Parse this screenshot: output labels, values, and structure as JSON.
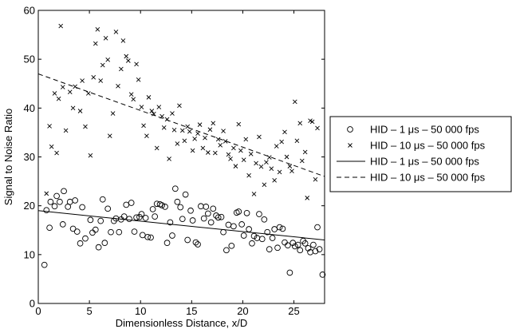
{
  "chart_data": {
    "type": "scatter",
    "xlabel": "Dimensionless Distance, x/D",
    "ylabel": "Signal to Noise Ratio",
    "xlim": [
      0,
      28
    ],
    "ylim": [
      0,
      60
    ],
    "xticks": [
      0,
      5,
      10,
      15,
      20,
      25
    ],
    "yticks": [
      0,
      10,
      20,
      30,
      40,
      50,
      60
    ],
    "grid": false,
    "legend_position": "right",
    "series": [
      {
        "name": "HID – 1 μs – 50 000 fps",
        "kind": "scatter",
        "marker": "circle",
        "points": [
          [
            0.6,
            7.9
          ],
          [
            0.8,
            19.1
          ],
          [
            1.1,
            15.5
          ],
          [
            1.2,
            20.8
          ],
          [
            1.6,
            19.9
          ],
          [
            1.8,
            22.0
          ],
          [
            2.1,
            20.8
          ],
          [
            2.4,
            16.2
          ],
          [
            2.5,
            23.0
          ],
          [
            2.9,
            19.8
          ],
          [
            3.1,
            20.8
          ],
          [
            3.4,
            15.3
          ],
          [
            3.6,
            21.1
          ],
          [
            3.8,
            14.7
          ],
          [
            4.1,
            12.3
          ],
          [
            4.3,
            19.7
          ],
          [
            4.6,
            13.3
          ],
          [
            5.1,
            17.1
          ],
          [
            5.3,
            14.5
          ],
          [
            5.6,
            15.1
          ],
          [
            5.9,
            11.5
          ],
          [
            6.1,
            16.9
          ],
          [
            6.3,
            21.3
          ],
          [
            6.5,
            12.4
          ],
          [
            6.8,
            19.4
          ],
          [
            7.1,
            14.6
          ],
          [
            7.4,
            16.9
          ],
          [
            7.6,
            17.4
          ],
          [
            7.9,
            14.6
          ],
          [
            8.1,
            17.2
          ],
          [
            8.4,
            17.8
          ],
          [
            8.6,
            20.2
          ],
          [
            8.9,
            17.3
          ],
          [
            9.1,
            20.6
          ],
          [
            9.4,
            14.7
          ],
          [
            9.6,
            17.6
          ],
          [
            9.9,
            17.7
          ],
          [
            10.1,
            18.3
          ],
          [
            10.2,
            14.0
          ],
          [
            10.5,
            17.5
          ],
          [
            10.7,
            13.6
          ],
          [
            11.0,
            13.5
          ],
          [
            11.2,
            19.3
          ],
          [
            11.4,
            17.8
          ],
          [
            11.6,
            20.4
          ],
          [
            11.9,
            20.3
          ],
          [
            12.1,
            20.1
          ],
          [
            12.4,
            19.8
          ],
          [
            12.6,
            12.4
          ],
          [
            12.9,
            16.6
          ],
          [
            13.1,
            13.9
          ],
          [
            13.4,
            23.5
          ],
          [
            13.6,
            20.8
          ],
          [
            13.9,
            19.7
          ],
          [
            14.1,
            17.3
          ],
          [
            14.4,
            22.3
          ],
          [
            14.6,
            13.0
          ],
          [
            14.9,
            19.0
          ],
          [
            15.1,
            17.0
          ],
          [
            15.4,
            12.5
          ],
          [
            15.6,
            12.1
          ],
          [
            15.9,
            19.9
          ],
          [
            16.2,
            17.4
          ],
          [
            16.4,
            19.8
          ],
          [
            16.6,
            18.4
          ],
          [
            16.9,
            16.6
          ],
          [
            17.1,
            19.4
          ],
          [
            17.4,
            18.0
          ],
          [
            17.6,
            17.6
          ],
          [
            17.9,
            17.7
          ],
          [
            18.1,
            14.6
          ],
          [
            18.4,
            10.9
          ],
          [
            18.6,
            16.1
          ],
          [
            18.9,
            11.8
          ],
          [
            19.1,
            15.8
          ],
          [
            19.4,
            18.6
          ],
          [
            19.6,
            18.8
          ],
          [
            19.9,
            16.2
          ],
          [
            20.1,
            13.9
          ],
          [
            20.4,
            18.5
          ],
          [
            20.6,
            15.2
          ],
          [
            20.9,
            12.3
          ],
          [
            21.1,
            13.8
          ],
          [
            21.4,
            13.4
          ],
          [
            21.6,
            18.3
          ],
          [
            21.9,
            13.2
          ],
          [
            22.1,
            17.2
          ],
          [
            22.4,
            14.6
          ],
          [
            22.6,
            11.1
          ],
          [
            22.9,
            13.4
          ],
          [
            23.1,
            15.2
          ],
          [
            23.4,
            11.4
          ],
          [
            23.6,
            15.6
          ],
          [
            23.9,
            15.3
          ],
          [
            24.1,
            12.5
          ],
          [
            24.4,
            11.9
          ],
          [
            24.6,
            6.3
          ],
          [
            24.9,
            12.4
          ],
          [
            25.1,
            11.7
          ],
          [
            25.4,
            12.0
          ],
          [
            25.6,
            10.9
          ],
          [
            25.9,
            12.8
          ],
          [
            26.1,
            12.3
          ],
          [
            26.4,
            11.3
          ],
          [
            26.6,
            10.5
          ],
          [
            26.9,
            12.0
          ],
          [
            27.1,
            10.7
          ],
          [
            27.3,
            15.6
          ],
          [
            27.5,
            11.1
          ],
          [
            27.8,
            5.9
          ]
        ]
      },
      {
        "name": "HID – 10 μs – 50 000 fps",
        "kind": "scatter",
        "marker": "x",
        "points": [
          [
            0.8,
            22.5
          ],
          [
            1.1,
            36.3
          ],
          [
            1.3,
            32.1
          ],
          [
            1.6,
            43.0
          ],
          [
            1.8,
            30.8
          ],
          [
            2.0,
            41.9
          ],
          [
            2.2,
            56.8
          ],
          [
            2.4,
            44.3
          ],
          [
            2.7,
            35.4
          ],
          [
            3.1,
            43.3
          ],
          [
            3.4,
            40.0
          ],
          [
            3.6,
            44.4
          ],
          [
            4.1,
            39.4
          ],
          [
            4.3,
            45.6
          ],
          [
            4.6,
            36.2
          ],
          [
            4.9,
            43.0
          ],
          [
            5.1,
            30.3
          ],
          [
            5.4,
            46.3
          ],
          [
            5.6,
            53.2
          ],
          [
            5.8,
            56.1
          ],
          [
            6.1,
            45.6
          ],
          [
            6.3,
            48.8
          ],
          [
            6.6,
            54.3
          ],
          [
            6.8,
            49.9
          ],
          [
            7.0,
            34.3
          ],
          [
            7.3,
            38.9
          ],
          [
            7.6,
            55.6
          ],
          [
            7.8,
            44.5
          ],
          [
            8.1,
            48.0
          ],
          [
            8.3,
            53.8
          ],
          [
            8.6,
            50.6
          ],
          [
            8.8,
            49.7
          ],
          [
            9.1,
            42.8
          ],
          [
            9.3,
            41.8
          ],
          [
            9.6,
            49.0
          ],
          [
            9.8,
            45.8
          ],
          [
            10.1,
            40.2
          ],
          [
            10.3,
            36.4
          ],
          [
            10.6,
            34.3
          ],
          [
            10.8,
            42.2
          ],
          [
            11.1,
            39.4
          ],
          [
            11.3,
            38.8
          ],
          [
            11.6,
            31.8
          ],
          [
            11.8,
            40.2
          ],
          [
            12.1,
            38.3
          ],
          [
            12.3,
            36.0
          ],
          [
            12.6,
            37.7
          ],
          [
            12.8,
            29.6
          ],
          [
            13.1,
            38.9
          ],
          [
            13.3,
            35.5
          ],
          [
            13.6,
            32.7
          ],
          [
            13.8,
            40.5
          ],
          [
            14.1,
            35.4
          ],
          [
            14.3,
            33.3
          ],
          [
            14.6,
            36.2
          ],
          [
            14.8,
            35.2
          ],
          [
            15.1,
            31.3
          ],
          [
            15.3,
            33.7
          ],
          [
            15.6,
            34.8
          ],
          [
            15.8,
            36.6
          ],
          [
            16.1,
            31.8
          ],
          [
            16.3,
            33.9
          ],
          [
            16.6,
            30.9
          ],
          [
            16.8,
            35.6
          ],
          [
            17.1,
            36.9
          ],
          [
            17.3,
            30.8
          ],
          [
            17.6,
            33.6
          ],
          [
            17.8,
            32.4
          ],
          [
            18.1,
            35.3
          ],
          [
            18.3,
            33.2
          ],
          [
            18.6,
            30.5
          ],
          [
            18.8,
            29.6
          ],
          [
            19.1,
            31.8
          ],
          [
            19.3,
            28.1
          ],
          [
            19.6,
            36.7
          ],
          [
            19.8,
            31.3
          ],
          [
            20.1,
            29.4
          ],
          [
            20.3,
            33.6
          ],
          [
            20.6,
            26.2
          ],
          [
            20.8,
            30.6
          ],
          [
            21.1,
            22.4
          ],
          [
            21.3,
            28.7
          ],
          [
            21.6,
            34.1
          ],
          [
            21.8,
            28.0
          ],
          [
            22.1,
            24.3
          ],
          [
            22.3,
            28.9
          ],
          [
            22.6,
            29.9
          ],
          [
            22.8,
            27.6
          ],
          [
            23.1,
            25.2
          ],
          [
            23.3,
            32.2
          ],
          [
            23.6,
            26.9
          ],
          [
            23.8,
            33.1
          ],
          [
            24.1,
            35.1
          ],
          [
            24.3,
            30.0
          ],
          [
            24.6,
            28.1
          ],
          [
            24.8,
            27.1
          ],
          [
            25.1,
            41.3
          ],
          [
            25.3,
            33.3
          ],
          [
            25.6,
            36.9
          ],
          [
            25.8,
            29.2
          ],
          [
            26.1,
            31.0
          ],
          [
            26.3,
            21.6
          ],
          [
            26.6,
            37.4
          ],
          [
            26.8,
            37.2
          ],
          [
            27.1,
            25.4
          ],
          [
            27.3,
            35.9
          ]
        ]
      },
      {
        "name": "HID – 1 μs – 50 000 fps",
        "kind": "line",
        "style": "solid",
        "points": [
          [
            0,
            19.0
          ],
          [
            28,
            13.0
          ]
        ]
      },
      {
        "name": "HID – 10 μs – 50 000 fps",
        "kind": "line",
        "style": "dashed",
        "points": [
          [
            0,
            47.0
          ],
          [
            28,
            26.0
          ]
        ]
      }
    ]
  }
}
